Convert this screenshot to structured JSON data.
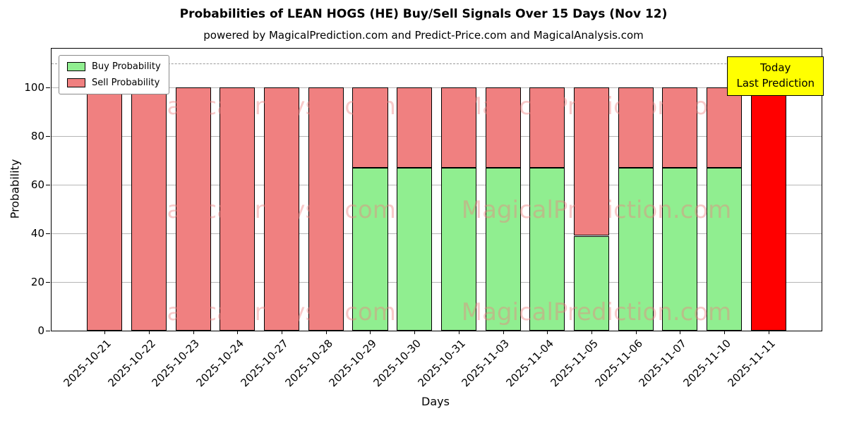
{
  "chart_data": {
    "type": "bar",
    "stacked": true,
    "title": "Probabilities of LEAN HOGS (HE) Buy/Sell Signals Over 15 Days (Nov 12)",
    "subtitle": "powered by MagicalPrediction.com and Predict-Price.com and MagicalAnalysis.com",
    "xlabel": "Days",
    "ylabel": "Probability",
    "ylim": [
      0,
      116
    ],
    "yticks": [
      0,
      20,
      40,
      60,
      80,
      100
    ],
    "grid": true,
    "dashed_line": {
      "y": 110,
      "color": "#9a9a9a",
      "style": "dashed"
    },
    "categories": [
      "2025-10-21",
      "2025-10-22",
      "2025-10-23",
      "2025-10-24",
      "2025-10-27",
      "2025-10-28",
      "2025-10-29",
      "2025-10-30",
      "2025-10-31",
      "2025-11-03",
      "2025-11-04",
      "2025-11-05",
      "2025-11-06",
      "2025-11-07",
      "2025-11-10",
      "2025-11-11"
    ],
    "series": [
      {
        "name": "Buy Probability",
        "color": "#90ee90",
        "values": [
          0,
          0,
          0,
          0,
          0,
          0,
          67,
          67,
          67,
          67,
          67,
          39,
          67,
          67,
          67,
          0
        ]
      },
      {
        "name": "Sell Probability",
        "color": "#f08080",
        "values": [
          100,
          100,
          100,
          100,
          100,
          100,
          33,
          33,
          33,
          33,
          33,
          61,
          33,
          33,
          33,
          0
        ]
      }
    ],
    "today_bar": {
      "category": "2025-11-11",
      "index": 15,
      "value": 100,
      "color": "#ff0000"
    },
    "legend": {
      "position": "upper left"
    },
    "annotation": {
      "line1": "Today",
      "line2": "Last Prediction",
      "bg_color": "#ffff00",
      "border_color": "#000000"
    },
    "watermark": {
      "texts": [
        "MagicalAnalysis.com",
        "MagicalPrediction.com"
      ],
      "color": "#f08080",
      "opacity": 0.42
    },
    "bar_edge_color": "#000000"
  }
}
